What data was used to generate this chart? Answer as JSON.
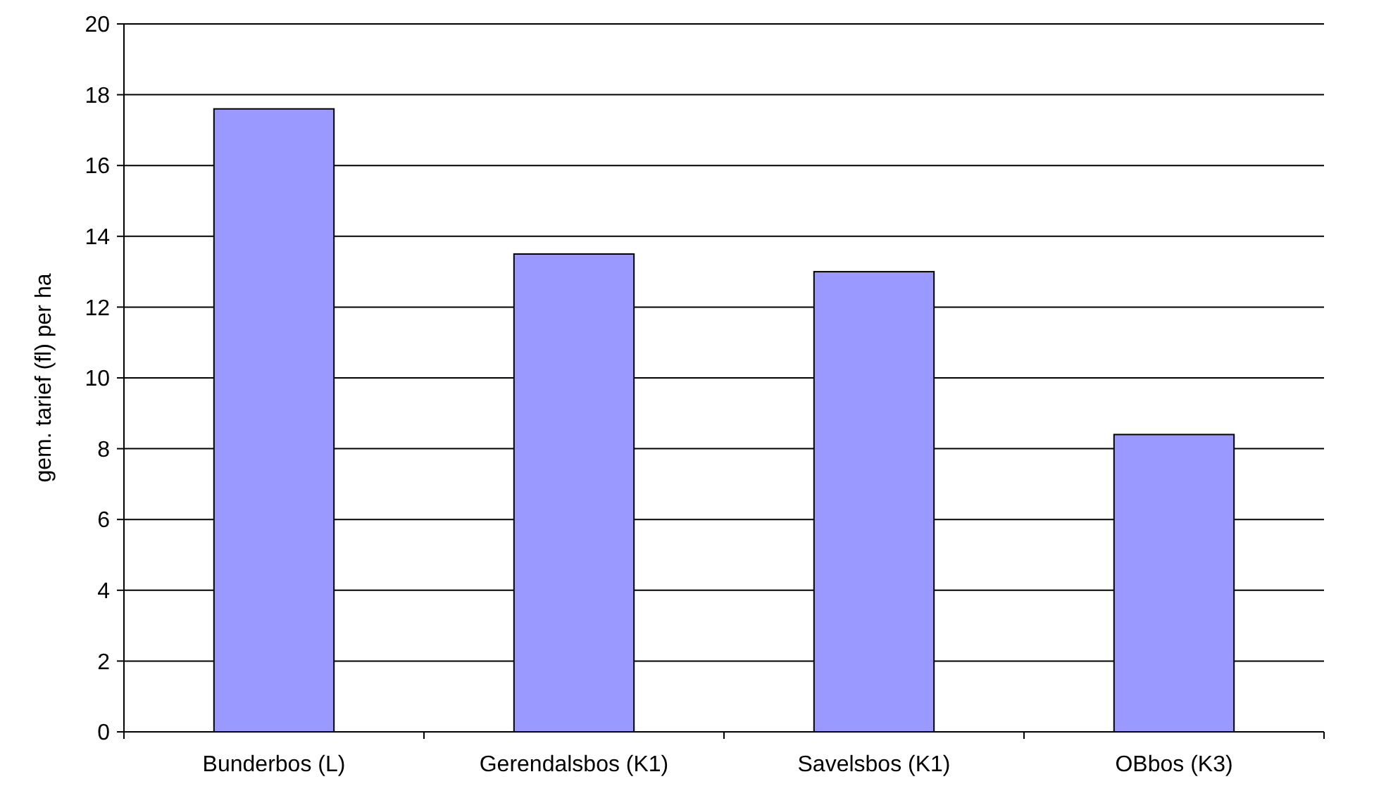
{
  "chart_data": {
    "type": "bar",
    "ylabel": "gem. tarief (fl) per ha",
    "categories": [
      "Bunderbos (L)",
      "Gerendalsbos (K1)",
      "Savelsbos (K1)",
      "OBbos (K3)"
    ],
    "values": [
      17.6,
      13.5,
      13.0,
      8.4
    ],
    "color": "#9999ff",
    "ylim": [
      0,
      20
    ],
    "yticks": [
      0,
      2,
      4,
      6,
      8,
      10,
      12,
      14,
      16,
      18,
      20
    ],
    "grid": "y"
  }
}
